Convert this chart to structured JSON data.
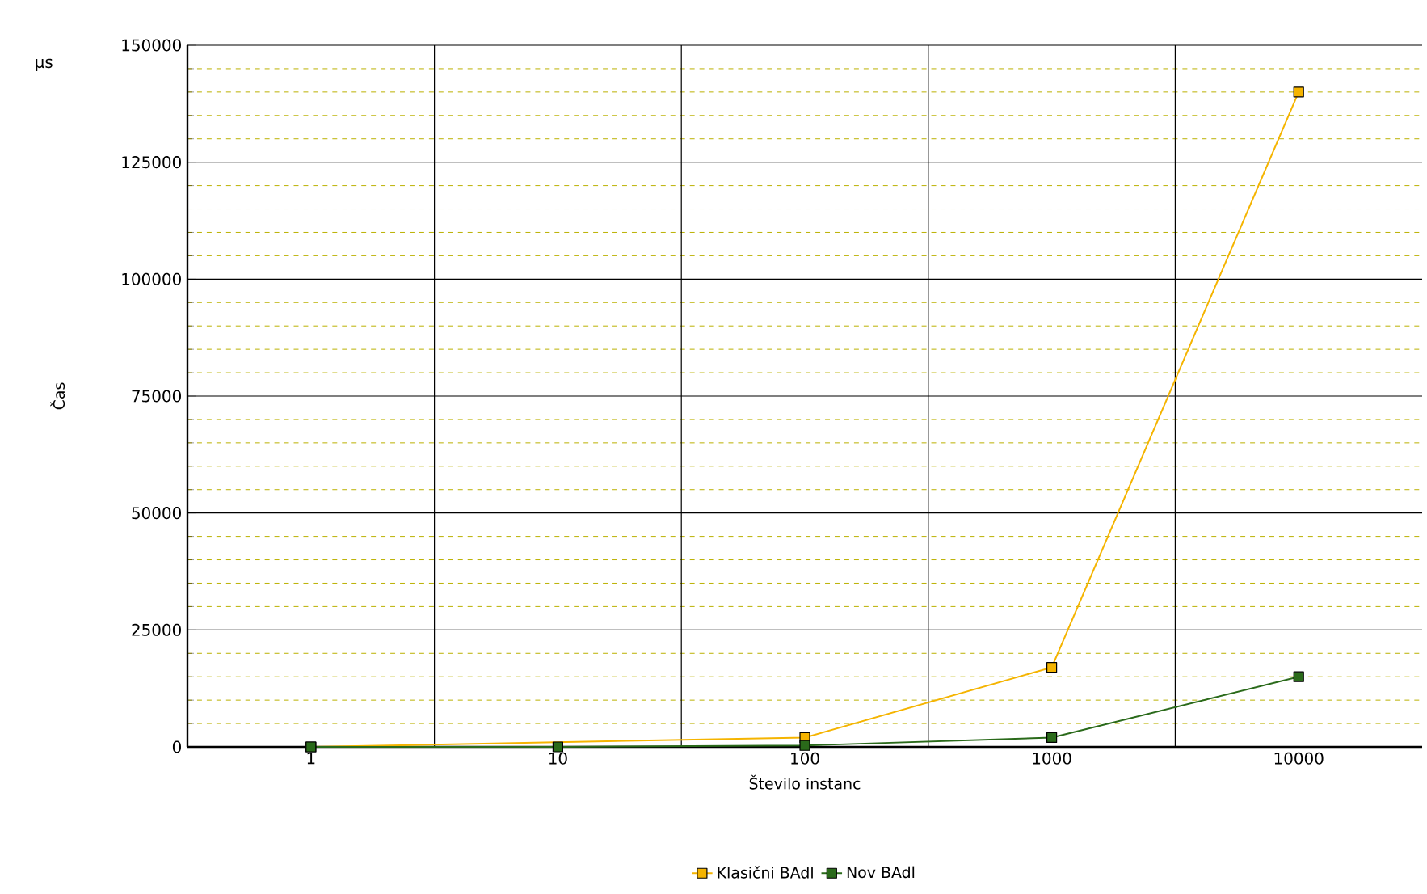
{
  "chart_data": {
    "type": "line",
    "xlabel": "Število instanc",
    "ylabel": "Čas",
    "annotations": [
      "µs"
    ],
    "categories": [
      "1",
      "10",
      "100",
      "1000",
      "10000"
    ],
    "series": [
      {
        "name": "Klasični BAdl",
        "color": "#f5b400",
        "values": [
          0,
          null,
          2000,
          17000,
          140000
        ]
      },
      {
        "name": "Nov BAdl",
        "color": "#2a6a1a",
        "values": [
          0,
          0,
          300,
          2000,
          15000
        ]
      }
    ],
    "ylim": [
      0,
      150000
    ],
    "yticks": [
      0,
      {
        "value": 5000,
        "label": null
      },
      {
        "value": 10000,
        "label": null
      },
      {
        "value": 15000,
        "label": null
      },
      {
        "value": 20000,
        "label": null
      },
      25000,
      {
        "value": 30000,
        "label": null
      },
      {
        "value": 35000,
        "label": null
      },
      {
        "value": 40000,
        "label": null
      },
      {
        "value": 45000,
        "label": null
      },
      50000,
      {
        "value": 55000,
        "label": null
      },
      {
        "value": 60000,
        "label": null
      },
      {
        "value": 65000,
        "label": null
      },
      {
        "value": 70000,
        "label": null
      },
      75000,
      {
        "value": 80000,
        "label": null
      },
      {
        "value": 85000,
        "label": null
      },
      {
        "value": 90000,
        "label": null
      },
      {
        "value": 95000,
        "label": null
      },
      100000,
      {
        "value": 105000,
        "label": null
      },
      {
        "value": 110000,
        "label": null
      },
      {
        "value": 115000,
        "label": null
      },
      {
        "value": 120000,
        "label": null
      },
      125000,
      {
        "value": 130000,
        "label": null
      },
      {
        "value": 135000,
        "label": null
      },
      {
        "value": 140000,
        "label": null
      },
      {
        "value": 145000,
        "label": null
      },
      150000
    ],
    "grid": true,
    "legend": "bottom",
    "marker": "square",
    "line_style": "solid"
  }
}
